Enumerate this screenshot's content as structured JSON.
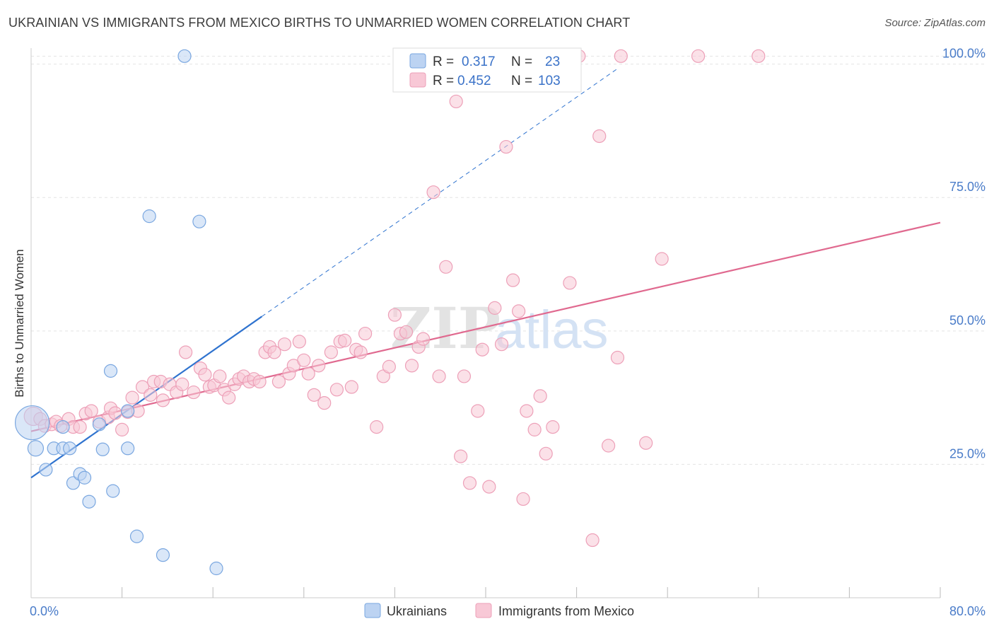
{
  "title": "UKRAINIAN VS IMMIGRANTS FROM MEXICO BIRTHS TO UNMARRIED WOMEN CORRELATION CHART",
  "source": "Source: ZipAtlas.com",
  "watermark": {
    "zip": "ZIP",
    "atlas": "atlas"
  },
  "chart_data": {
    "type": "scatter",
    "xlabel": "",
    "ylabel": "Births to Unmarried Women",
    "xlim": [
      0,
      80
    ],
    "ylim": [
      0,
      103
    ],
    "x_tick_labels": [
      {
        "value": 0,
        "label": "0.0%"
      },
      {
        "value": 80,
        "label": "80.0%"
      }
    ],
    "x_minor_ticks": [
      8,
      16,
      24,
      32,
      40,
      48,
      56,
      64,
      72
    ],
    "y_ticks": [
      {
        "value": 25,
        "label": "25.0%"
      },
      {
        "value": 50,
        "label": "50.0%"
      },
      {
        "value": 75,
        "label": "75.0%"
      },
      {
        "value": 100,
        "label": "100.0%"
      }
    ],
    "grid": true,
    "legend": [
      {
        "name": "Ukrainians",
        "r_label": "R =",
        "r": "0.317",
        "n_label": "N =",
        "n": "23"
      },
      {
        "name": "Immigrants from Mexico",
        "r_label": "R =",
        "r": "0.452",
        "n_label": "N =",
        "n": "103"
      }
    ],
    "series": [
      {
        "name": "Ukrainians",
        "color": "#7aa7e0",
        "fill": "#bcd3f2",
        "line_color": "#2f73cf",
        "trend": {
          "x0": 0,
          "y0": 22.5,
          "x1": 20.3,
          "y1": 52.7,
          "dash_to_x": 51.5,
          "dash_to_y": 99
        },
        "points": [
          {
            "x": 0.1,
            "y": 32.8,
            "s": 24
          },
          {
            "x": 0.4,
            "y": 28.0,
            "s": 11
          },
          {
            "x": 1.3,
            "y": 24.0,
            "s": 9
          },
          {
            "x": 2.0,
            "y": 28.0,
            "s": 9
          },
          {
            "x": 2.8,
            "y": 28.0,
            "s": 9
          },
          {
            "x": 2.8,
            "y": 32.0,
            "s": 9
          },
          {
            "x": 3.4,
            "y": 28.0,
            "s": 9
          },
          {
            "x": 3.7,
            "y": 21.5,
            "s": 9
          },
          {
            "x": 4.3,
            "y": 23.2,
            "s": 9
          },
          {
            "x": 4.7,
            "y": 22.5,
            "s": 9
          },
          {
            "x": 5.1,
            "y": 18.0,
            "s": 9
          },
          {
            "x": 6.0,
            "y": 32.5,
            "s": 9
          },
          {
            "x": 6.3,
            "y": 27.8,
            "s": 9
          },
          {
            "x": 7.0,
            "y": 42.5,
            "s": 9
          },
          {
            "x": 7.2,
            "y": 20.0,
            "s": 9
          },
          {
            "x": 8.5,
            "y": 35.0,
            "s": 9
          },
          {
            "x": 8.5,
            "y": 28.0,
            "s": 9
          },
          {
            "x": 9.3,
            "y": 11.5,
            "s": 9
          },
          {
            "x": 10.4,
            "y": 71.5,
            "s": 9
          },
          {
            "x": 11.6,
            "y": 8.0,
            "s": 9
          },
          {
            "x": 13.5,
            "y": 101.5,
            "s": 9
          },
          {
            "x": 14.8,
            "y": 70.5,
            "s": 9
          },
          {
            "x": 16.3,
            "y": 5.5,
            "s": 9
          }
        ]
      },
      {
        "name": "Immigrants from Mexico",
        "color": "#eda0b8",
        "fill": "#f8c8d6",
        "line_color": "#e0698f",
        "trend": {
          "x0": 0,
          "y0": 31.2,
          "x1": 80,
          "y1": 70.3
        },
        "points": [
          {
            "x": 0.2,
            "y": 34.0,
            "s": 13
          },
          {
            "x": 0.8,
            "y": 33.5,
            "s": 9
          },
          {
            "x": 1.2,
            "y": 32.2,
            "s": 9
          },
          {
            "x": 1.8,
            "y": 32.5,
            "s": 9
          },
          {
            "x": 2.2,
            "y": 33.0,
            "s": 9
          },
          {
            "x": 2.6,
            "y": 32.2,
            "s": 9
          },
          {
            "x": 3.3,
            "y": 33.5,
            "s": 9
          },
          {
            "x": 3.7,
            "y": 32.0,
            "s": 9
          },
          {
            "x": 4.3,
            "y": 32.0,
            "s": 9
          },
          {
            "x": 4.8,
            "y": 34.5,
            "s": 9
          },
          {
            "x": 5.3,
            "y": 35.0,
            "s": 9
          },
          {
            "x": 6.0,
            "y": 33.0,
            "s": 9
          },
          {
            "x": 6.8,
            "y": 33.8,
            "s": 9
          },
          {
            "x": 7.0,
            "y": 35.5,
            "s": 9
          },
          {
            "x": 7.4,
            "y": 34.6,
            "s": 9
          },
          {
            "x": 8.0,
            "y": 31.5,
            "s": 9
          },
          {
            "x": 8.5,
            "y": 34.8,
            "s": 9
          },
          {
            "x": 8.9,
            "y": 37.5,
            "s": 9
          },
          {
            "x": 9.4,
            "y": 35.0,
            "s": 9
          },
          {
            "x": 9.8,
            "y": 39.5,
            "s": 9
          },
          {
            "x": 10.5,
            "y": 38.0,
            "s": 9
          },
          {
            "x": 10.8,
            "y": 40.5,
            "s": 9
          },
          {
            "x": 11.4,
            "y": 40.5,
            "s": 9
          },
          {
            "x": 11.6,
            "y": 37.0,
            "s": 9
          },
          {
            "x": 12.2,
            "y": 40.0,
            "s": 9
          },
          {
            "x": 12.8,
            "y": 38.5,
            "s": 9
          },
          {
            "x": 13.3,
            "y": 40.0,
            "s": 9
          },
          {
            "x": 13.6,
            "y": 46.0,
            "s": 9
          },
          {
            "x": 14.3,
            "y": 38.5,
            "s": 9
          },
          {
            "x": 14.9,
            "y": 43.0,
            "s": 9
          },
          {
            "x": 15.3,
            "y": 41.8,
            "s": 9
          },
          {
            "x": 15.7,
            "y": 39.5,
            "s": 9
          },
          {
            "x": 16.1,
            "y": 39.8,
            "s": 9
          },
          {
            "x": 16.6,
            "y": 41.5,
            "s": 9
          },
          {
            "x": 17.0,
            "y": 39.0,
            "s": 9
          },
          {
            "x": 17.4,
            "y": 37.5,
            "s": 9
          },
          {
            "x": 17.9,
            "y": 40.0,
            "s": 9
          },
          {
            "x": 18.3,
            "y": 41.0,
            "s": 9
          },
          {
            "x": 18.7,
            "y": 41.5,
            "s": 9
          },
          {
            "x": 19.2,
            "y": 40.5,
            "s": 9
          },
          {
            "x": 19.6,
            "y": 41.0,
            "s": 9
          },
          {
            "x": 20.1,
            "y": 40.5,
            "s": 9
          },
          {
            "x": 20.6,
            "y": 46.0,
            "s": 9
          },
          {
            "x": 21.0,
            "y": 47.0,
            "s": 9
          },
          {
            "x": 21.4,
            "y": 46.0,
            "s": 9
          },
          {
            "x": 21.8,
            "y": 40.5,
            "s": 9
          },
          {
            "x": 22.3,
            "y": 47.5,
            "s": 9
          },
          {
            "x": 22.7,
            "y": 42.0,
            "s": 9
          },
          {
            "x": 23.1,
            "y": 43.5,
            "s": 9
          },
          {
            "x": 23.6,
            "y": 48.0,
            "s": 9
          },
          {
            "x": 24.0,
            "y": 44.5,
            "s": 9
          },
          {
            "x": 24.4,
            "y": 42.0,
            "s": 9
          },
          {
            "x": 24.9,
            "y": 38.0,
            "s": 9
          },
          {
            "x": 25.3,
            "y": 43.5,
            "s": 9
          },
          {
            "x": 25.8,
            "y": 36.5,
            "s": 9
          },
          {
            "x": 26.4,
            "y": 46.0,
            "s": 9
          },
          {
            "x": 26.9,
            "y": 39.0,
            "s": 9
          },
          {
            "x": 27.2,
            "y": 48.0,
            "s": 9
          },
          {
            "x": 27.6,
            "y": 48.2,
            "s": 9
          },
          {
            "x": 28.2,
            "y": 39.5,
            "s": 9
          },
          {
            "x": 28.6,
            "y": 46.5,
            "s": 9
          },
          {
            "x": 29.0,
            "y": 46.0,
            "s": 9
          },
          {
            "x": 29.4,
            "y": 49.5,
            "s": 9
          },
          {
            "x": 30.4,
            "y": 32.0,
            "s": 9
          },
          {
            "x": 31.0,
            "y": 41.5,
            "s": 9
          },
          {
            "x": 31.5,
            "y": 43.3,
            "s": 9
          },
          {
            "x": 32.0,
            "y": 53.0,
            "s": 9
          },
          {
            "x": 32.5,
            "y": 49.5,
            "s": 9
          },
          {
            "x": 33.0,
            "y": 49.8,
            "s": 9
          },
          {
            "x": 33.5,
            "y": 43.5,
            "s": 9
          },
          {
            "x": 34.1,
            "y": 47.0,
            "s": 9
          },
          {
            "x": 34.5,
            "y": 48.5,
            "s": 9
          },
          {
            "x": 35.4,
            "y": 76.0,
            "s": 9
          },
          {
            "x": 35.9,
            "y": 41.5,
            "s": 9
          },
          {
            "x": 36.5,
            "y": 62.0,
            "s": 9
          },
          {
            "x": 37.4,
            "y": 93.0,
            "s": 9
          },
          {
            "x": 37.8,
            "y": 26.5,
            "s": 9
          },
          {
            "x": 38.1,
            "y": 41.5,
            "s": 9
          },
          {
            "x": 38.6,
            "y": 21.5,
            "s": 9
          },
          {
            "x": 39.3,
            "y": 35.0,
            "s": 9
          },
          {
            "x": 39.7,
            "y": 46.5,
            "s": 9
          },
          {
            "x": 40.3,
            "y": 20.8,
            "s": 9
          },
          {
            "x": 40.8,
            "y": 54.3,
            "s": 9
          },
          {
            "x": 41.4,
            "y": 47.5,
            "s": 9
          },
          {
            "x": 41.8,
            "y": 84.5,
            "s": 9
          },
          {
            "x": 42.4,
            "y": 59.5,
            "s": 9
          },
          {
            "x": 42.9,
            "y": 53.7,
            "s": 9
          },
          {
            "x": 43.3,
            "y": 18.5,
            "s": 9
          },
          {
            "x": 43.6,
            "y": 35.0,
            "s": 9
          },
          {
            "x": 44.3,
            "y": 31.5,
            "s": 9
          },
          {
            "x": 44.8,
            "y": 37.8,
            "s": 9
          },
          {
            "x": 45.3,
            "y": 27.0,
            "s": 9
          },
          {
            "x": 45.9,
            "y": 32.0,
            "s": 9
          },
          {
            "x": 47.4,
            "y": 59.0,
            "s": 9
          },
          {
            "x": 48.2,
            "y": 101.5,
            "s": 9
          },
          {
            "x": 49.4,
            "y": 10.8,
            "s": 9
          },
          {
            "x": 50.0,
            "y": 86.5,
            "s": 9
          },
          {
            "x": 50.8,
            "y": 28.5,
            "s": 9
          },
          {
            "x": 51.6,
            "y": 45.0,
            "s": 9
          },
          {
            "x": 51.9,
            "y": 101.5,
            "s": 9
          },
          {
            "x": 54.1,
            "y": 29.0,
            "s": 9
          },
          {
            "x": 55.5,
            "y": 63.5,
            "s": 9
          },
          {
            "x": 58.7,
            "y": 101.5,
            "s": 9
          },
          {
            "x": 64.0,
            "y": 101.5,
            "s": 9
          }
        ]
      }
    ]
  }
}
